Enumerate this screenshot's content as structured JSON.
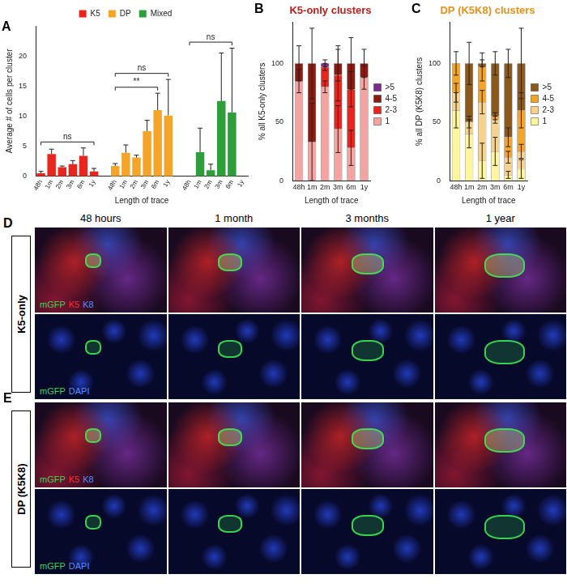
{
  "chart_data": [
    {
      "type": "bar",
      "panel": "A",
      "legend": "top",
      "grid": false,
      "y_label": "Average # of cells per cluster",
      "x_label": "Length of trace",
      "categories": [
        "48h",
        "1m",
        "2m",
        "3m",
        "6m",
        "1y",
        null,
        "48h",
        "1m",
        "2m",
        "3m",
        "6m",
        "1y",
        null,
        "48h",
        "1m",
        "2m",
        "3m",
        "6m",
        "1y"
      ],
      "ylim": [
        0,
        25
      ],
      "yticks": [
        0,
        5,
        10,
        15,
        20
      ],
      "series": [
        {
          "name": "K5",
          "color": "#e8261e",
          "values": [
            0.5,
            3.7,
            1.5,
            2.0,
            3.4,
            0.8,
            null,
            null,
            null,
            null,
            null,
            null,
            null,
            null,
            null,
            null,
            null,
            null,
            null,
            null
          ],
          "errors": [
            0.3,
            0.8,
            0.2,
            0.6,
            1.3,
            0.5,
            null,
            null,
            null,
            null,
            null,
            null,
            null,
            null,
            null,
            null,
            null,
            null,
            null,
            null
          ]
        },
        {
          "name": "DP",
          "color": "#f5a42a",
          "values": [
            null,
            null,
            null,
            null,
            null,
            null,
            null,
            1.7,
            3.9,
            3.1,
            7.5,
            11.0,
            10.1,
            null,
            null,
            null,
            null,
            null,
            null,
            null
          ],
          "errors": [
            null,
            null,
            null,
            null,
            null,
            null,
            null,
            0.4,
            1.3,
            0.4,
            1.8,
            2.8,
            6.0,
            null,
            null,
            null,
            null,
            null,
            null,
            null
          ]
        },
        {
          "name": "Mixed",
          "color": "#2e9e3a",
          "values": [
            null,
            null,
            null,
            null,
            null,
            null,
            null,
            null,
            null,
            null,
            null,
            null,
            null,
            null,
            null,
            4.0,
            1.0,
            12.5,
            10.6,
            null
          ],
          "errors": [
            null,
            null,
            null,
            null,
            null,
            null,
            null,
            null,
            null,
            null,
            null,
            null,
            null,
            null,
            null,
            4.0,
            1.0,
            8.0,
            10.7,
            null
          ]
        }
      ],
      "annotations": [
        {
          "from": 0,
          "to": 5,
          "label": "ns"
        },
        {
          "from": 7,
          "to": 11,
          "label": "**"
        },
        {
          "from": 7,
          "to": 12,
          "label": "ns"
        },
        {
          "from": 14,
          "to": 18,
          "label": "ns"
        }
      ]
    },
    {
      "type": "bar",
      "panel": "B",
      "title": "K5-only clusters",
      "stacked": true,
      "legend": "right",
      "grid": false,
      "y_label": "% all K5-only clusters",
      "x_label": "Length of trace",
      "categories": [
        "48h",
        "1m",
        "2m",
        "3m",
        "6m",
        "1y"
      ],
      "ylim": [
        0,
        135
      ],
      "yticks": [
        0,
        50,
        100
      ],
      "series": [
        {
          "name": "1",
          "color": "#f4a3a0",
          "values": [
            85,
            33,
            80,
            44,
            28,
            88
          ],
          "errors": [
            10,
            33,
            5,
            20,
            15,
            10
          ]
        },
        {
          "name": "2-3",
          "color": "#e8261e",
          "values": [
            0,
            0,
            17,
            46,
            50,
            0
          ],
          "errors": [
            null,
            null,
            3,
            22,
            15,
            null
          ]
        },
        {
          "name": "4-5",
          "color": "#8b1a10",
          "values": [
            15,
            67,
            0,
            10,
            22,
            12
          ],
          "errors": [
            15,
            30,
            null,
            15,
            22,
            12
          ]
        },
        {
          "name": ">5",
          "color": "#7b2d8e",
          "values": [
            0,
            0,
            3,
            0,
            0,
            0
          ],
          "errors": [
            null,
            null,
            3,
            null,
            null,
            null
          ]
        }
      ]
    },
    {
      "type": "bar",
      "panel": "C",
      "title": "DP (K5K8) clusters",
      "stacked": true,
      "legend": "right",
      "grid": false,
      "y_label": "% all DP (K5K8) clusters",
      "x_label": "Length of trace",
      "categories": [
        "48h",
        "1m",
        "2m",
        "3m",
        "6m",
        "1y"
      ],
      "ylim": [
        0,
        135
      ],
      "yticks": [
        0,
        50,
        100
      ],
      "series": [
        {
          "name": "1",
          "color": "#fff59d",
          "values": [
            60,
            40,
            17,
            25,
            5,
            10
          ],
          "errors": [
            15,
            12,
            15,
            12,
            3,
            8
          ]
        },
        {
          "name": "2-3",
          "color": "#f7d28c",
          "values": [
            15,
            10,
            50,
            27,
            15,
            15
          ],
          "errors": [
            8,
            5,
            10,
            3,
            5,
            6
          ]
        },
        {
          "name": "4-5",
          "color": "#f5a42a",
          "values": [
            25,
            0,
            30,
            3,
            17,
            35
          ],
          "errors": [
            10,
            null,
            12,
            3,
            8,
            15
          ]
        },
        {
          "name": ">5",
          "color": "#8b5a1b",
          "values": [
            0,
            50,
            3,
            45,
            63,
            40
          ],
          "errors": [
            null,
            18,
            3,
            10,
            12,
            30
          ]
        }
      ]
    }
  ],
  "image_panels": {
    "columns": [
      "48 hours",
      "1 month",
      "3 months",
      "1 year"
    ],
    "panels": [
      {
        "panel": "D",
        "label": "K5-only",
        "rows": [
          [
            {
              "text": "mGFP",
              "color": "#39d353"
            },
            {
              "text": "K5",
              "color": "#ff2a2a"
            },
            {
              "text": "K8",
              "color": "#4f8dff"
            }
          ],
          [
            {
              "text": "mGFP",
              "color": "#39d353"
            },
            {
              "text": "DAPI",
              "color": "#4f8dff"
            }
          ]
        ]
      },
      {
        "panel": "E",
        "label": "DP (K5K8)",
        "rows": [
          [
            {
              "text": "mGFP",
              "color": "#39d353"
            },
            {
              "text": "K5",
              "color": "#ff2a2a"
            },
            {
              "text": "K8",
              "color": "#4f8dff"
            }
          ],
          [
            {
              "text": "mGFP",
              "color": "#39d353"
            },
            {
              "text": "DAPI",
              "color": "#4f8dff"
            }
          ]
        ]
      }
    ]
  }
}
